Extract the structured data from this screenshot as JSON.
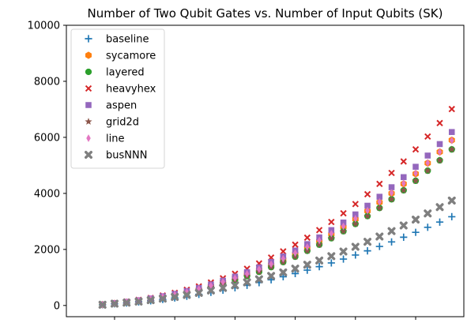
{
  "chart_data": {
    "type": "scatter",
    "title": "Number of Two Qubit Gates vs. Number of Input Qubits (SK)",
    "xlabel": "",
    "ylabel": "",
    "xlim": [
      1,
      34
    ],
    "ylim": [
      -400,
      10000
    ],
    "y_ticks": [
      0,
      2000,
      4000,
      6000,
      8000,
      10000
    ],
    "x_ticks_labeled": false,
    "grid": false,
    "legend_position": "top-left",
    "x": [
      4,
      5,
      6,
      7,
      8,
      9,
      10,
      11,
      12,
      13,
      14,
      15,
      16,
      17,
      18,
      19,
      20,
      21,
      22,
      23,
      24,
      25,
      26,
      27,
      28,
      29,
      30,
      31,
      32,
      33
    ],
    "series": [
      {
        "name": "baseline",
        "marker": "plus",
        "color": "#1f77b4",
        "values": [
          24,
          60,
          90,
          126,
          168,
          216,
          270,
          330,
          396,
          468,
          546,
          630,
          720,
          816,
          918,
          1026,
          1140,
          1260,
          1386,
          1518,
          1656,
          1800,
          1950,
          2106,
          2268,
          2436,
          2610,
          2790,
          2976,
          3168
        ]
      },
      {
        "name": "sycamore",
        "marker": "hexagon",
        "color": "#ff7f0e",
        "values": [
          30,
          75,
          120,
          170,
          225,
          300,
          380,
          480,
          580,
          700,
          830,
          970,
          1120,
          1280,
          1460,
          1650,
          1850,
          2070,
          2300,
          2540,
          2800,
          3080,
          3370,
          3680,
          4000,
          4340,
          4700,
          5080,
          5480,
          5900
        ]
      },
      {
        "name": "layered",
        "marker": "circle",
        "color": "#2ca02c",
        "values": [
          28,
          70,
          110,
          160,
          215,
          285,
          360,
          450,
          550,
          660,
          780,
          910,
          1050,
          1200,
          1370,
          1550,
          1740,
          1950,
          2170,
          2400,
          2650,
          2910,
          3190,
          3480,
          3790,
          4110,
          4450,
          4810,
          5180,
          5570
        ]
      },
      {
        "name": "heavyhex",
        "marker": "x",
        "color": "#d62728",
        "values": [
          35,
          90,
          140,
          200,
          270,
          355,
          450,
          560,
          680,
          820,
          970,
          1130,
          1310,
          1500,
          1710,
          1930,
          2170,
          2420,
          2690,
          2980,
          3290,
          3620,
          3970,
          4340,
          4730,
          5140,
          5570,
          6030,
          6510,
          7010
        ]
      },
      {
        "name": "aspen",
        "marker": "square",
        "color": "#9467bd",
        "values": [
          32,
          85,
          130,
          185,
          250,
          330,
          415,
          515,
          625,
          750,
          885,
          1030,
          1190,
          1360,
          1550,
          1750,
          1960,
          2190,
          2430,
          2690,
          2960,
          3250,
          3560,
          3880,
          4220,
          4580,
          4950,
          5350,
          5760,
          6190
        ]
      },
      {
        "name": "grid2d",
        "marker": "star",
        "color": "#8c564b",
        "values": [
          28,
          70,
          110,
          160,
          215,
          285,
          360,
          450,
          550,
          660,
          780,
          910,
          1050,
          1200,
          1370,
          1550,
          1740,
          1950,
          2170,
          2400,
          2650,
          2910,
          3190,
          3480,
          3790,
          4110,
          4450,
          4810,
          5180,
          5570
        ]
      },
      {
        "name": "line",
        "marker": "thin_diamond",
        "color": "#e377c2",
        "values": [
          30,
          78,
          122,
          175,
          235,
          310,
          390,
          485,
          590,
          710,
          840,
          980,
          1130,
          1295,
          1475,
          1665,
          1870,
          2090,
          2320,
          2565,
          2825,
          3100,
          3390,
          3700,
          4020,
          4360,
          4720,
          5090,
          5480,
          5890
        ]
      },
      {
        "name": "busNNN",
        "marker": "filled_x",
        "color": "#7f7f7f",
        "values": [
          26,
          66,
          100,
          140,
          190,
          245,
          305,
          375,
          450,
          535,
          625,
          720,
          825,
          935,
          1055,
          1180,
          1315,
          1455,
          1605,
          1760,
          1925,
          2095,
          2275,
          2460,
          2655,
          2855,
          3065,
          3285,
          3510,
          3745
        ]
      }
    ]
  }
}
